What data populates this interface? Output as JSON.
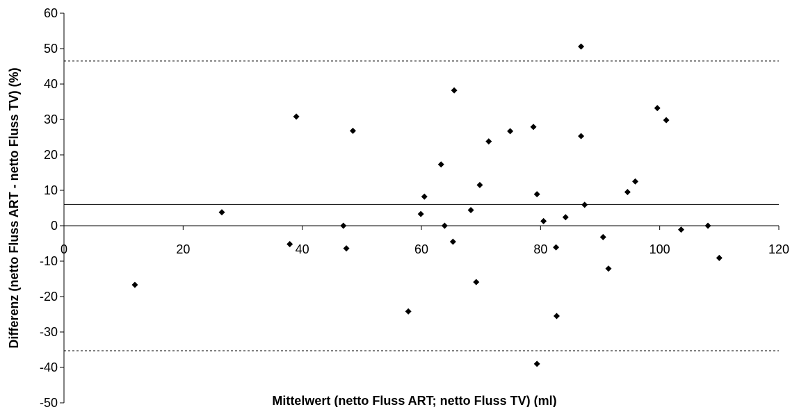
{
  "chart_data": {
    "type": "scatter",
    "title": "",
    "xlabel": "Mittelwert (netto Fluss ART; netto Fluss TV) (ml)",
    "ylabel": "Differenz (netto Fluss ART - netto Fluss TV) (%)",
    "xlim": [
      0,
      120
    ],
    "ylim": [
      -50,
      60
    ],
    "x_ticks": [
      0,
      20,
      40,
      60,
      80,
      100,
      120
    ],
    "y_ticks": [
      60,
      50,
      40,
      30,
      20,
      10,
      0,
      -10,
      -20,
      -30,
      -40,
      -50
    ],
    "grid": false,
    "legend": "none",
    "marker": "diamond",
    "marker_color": "#000000",
    "reference_lines": [
      {
        "kind": "mean",
        "y": 6.0,
        "style": "solid"
      },
      {
        "kind": "upper_limit",
        "y": 46.5,
        "style": "dashed"
      },
      {
        "kind": "lower_limit",
        "y": -35.3,
        "style": "dashed"
      }
    ],
    "points": [
      {
        "x": 11.9,
        "y": -16.7
      },
      {
        "x": 26.5,
        "y": 3.8
      },
      {
        "x": 37.9,
        "y": -5.2
      },
      {
        "x": 39.0,
        "y": 30.8
      },
      {
        "x": 46.9,
        "y": 0.0
      },
      {
        "x": 47.4,
        "y": -6.4
      },
      {
        "x": 48.5,
        "y": 26.8
      },
      {
        "x": 57.8,
        "y": -24.2
      },
      {
        "x": 59.9,
        "y": 3.3
      },
      {
        "x": 60.5,
        "y": 8.2
      },
      {
        "x": 63.3,
        "y": 17.3
      },
      {
        "x": 63.9,
        "y": 0.0
      },
      {
        "x": 65.3,
        "y": -4.5
      },
      {
        "x": 65.5,
        "y": 38.2
      },
      {
        "x": 68.3,
        "y": 4.4
      },
      {
        "x": 69.2,
        "y": -15.9
      },
      {
        "x": 69.8,
        "y": 11.5
      },
      {
        "x": 71.3,
        "y": 23.8
      },
      {
        "x": 74.9,
        "y": 26.7
      },
      {
        "x": 78.8,
        "y": 27.9
      },
      {
        "x": 79.4,
        "y": 8.9
      },
      {
        "x": 79.4,
        "y": -39.0
      },
      {
        "x": 80.5,
        "y": 1.3
      },
      {
        "x": 82.6,
        "y": -6.1
      },
      {
        "x": 82.7,
        "y": -25.5
      },
      {
        "x": 84.2,
        "y": 2.4
      },
      {
        "x": 86.8,
        "y": 50.6
      },
      {
        "x": 86.8,
        "y": 25.3
      },
      {
        "x": 87.4,
        "y": 5.9
      },
      {
        "x": 90.5,
        "y": -3.2
      },
      {
        "x": 91.4,
        "y": -12.1
      },
      {
        "x": 94.6,
        "y": 9.5
      },
      {
        "x": 95.9,
        "y": 12.5
      },
      {
        "x": 99.6,
        "y": 33.2
      },
      {
        "x": 101.1,
        "y": 29.8
      },
      {
        "x": 103.6,
        "y": -1.1
      },
      {
        "x": 108.1,
        "y": 0.0
      },
      {
        "x": 110.0,
        "y": -9.1
      }
    ]
  }
}
